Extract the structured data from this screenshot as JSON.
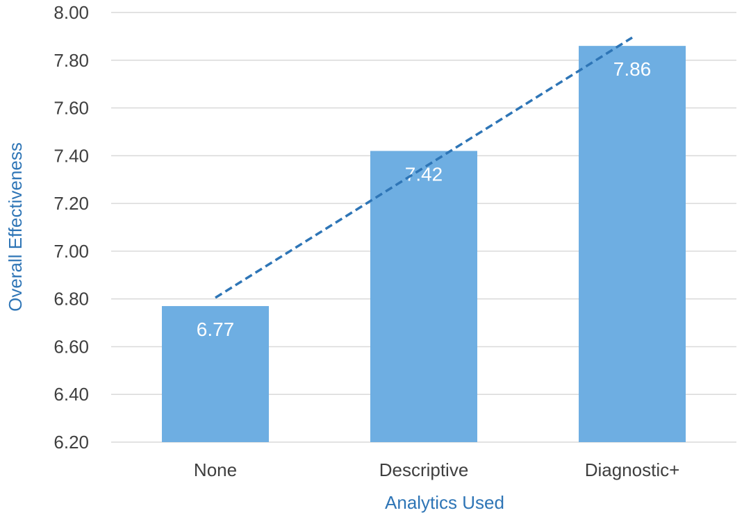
{
  "chart_data": {
    "type": "bar",
    "title": "",
    "xlabel": "Analytics Used",
    "ylabel": "Overall Effectiveness",
    "categories": [
      "None",
      "Descriptive",
      "Diagnostic+"
    ],
    "values": [
      6.77,
      7.42,
      7.86
    ],
    "data_labels": [
      "6.77",
      "7.42",
      "7.86"
    ],
    "ylim": [
      6.2,
      8.0
    ],
    "yticks": [
      "6.20",
      "6.40",
      "6.60",
      "6.80",
      "7.00",
      "7.20",
      "7.40",
      "7.60",
      "7.80",
      "8.00"
    ],
    "trendline": {
      "type": "linear",
      "style": "dashed"
    },
    "grid": true,
    "legend": "none",
    "colors": {
      "bar": "#6eaee2",
      "trend": "#2e75b6",
      "axis_title": "#2e75b6",
      "grid": "#d9d9d9",
      "tick": "#3f3f3f",
      "label": "#ffffff"
    }
  }
}
